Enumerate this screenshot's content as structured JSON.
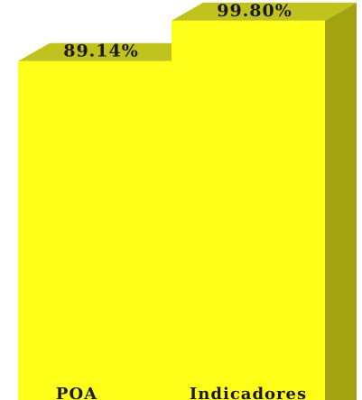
{
  "chart_data": {
    "type": "bar",
    "categories": [
      "POA",
      "Indicadores"
    ],
    "values": [
      89.14,
      99.8
    ],
    "value_labels": [
      "89.14%",
      "99.80%"
    ],
    "title": "",
    "xlabel": "",
    "ylabel": "",
    "ylim": [
      0,
      100
    ],
    "grid": false,
    "legend": "none",
    "style": "3d",
    "colors": {
      "front": "#ffff1a",
      "top": "#c2c21e",
      "side": "#a3a312",
      "text": "#1a1a1a"
    }
  }
}
